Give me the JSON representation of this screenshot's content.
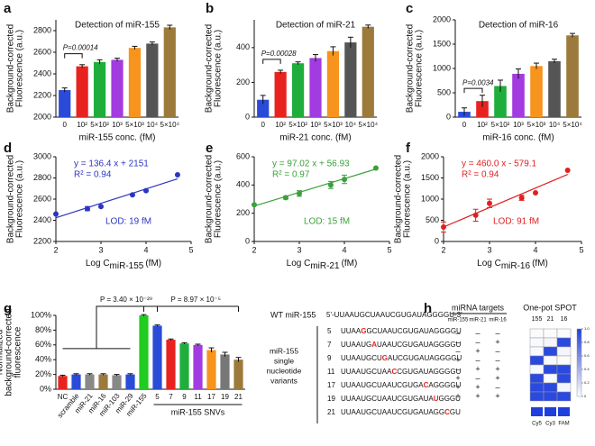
{
  "chart_data": [
    {
      "type": "bar",
      "panel": "a",
      "title": "Detection of miR-155",
      "categories": [
        "0",
        "10²",
        "5×10²",
        "10³",
        "5×10³",
        "10⁴",
        "5×10⁴"
      ],
      "values": [
        2250,
        2470,
        2510,
        2530,
        2640,
        2680,
        2830
      ],
      "errors": [
        20,
        15,
        20,
        15,
        15,
        15,
        20
      ],
      "colors": [
        "#2a4bd7",
        "#e8231f",
        "#1fae3c",
        "#a23be0",
        "#f7941d",
        "#555555",
        "#9c7a3c"
      ],
      "ylim": [
        2000,
        2900
      ],
      "yticks": [
        2000,
        2200,
        2400,
        2600,
        2800
      ],
      "y_label": [
        "Background-corrected",
        "Fluorescence (a.u.)"
      ],
      "x_label": "miR-155 conc. (fM)",
      "annotation": "P=0.00014"
    },
    {
      "type": "bar",
      "panel": "b",
      "title": "Detection of miR-21",
      "categories": [
        "0",
        "10²",
        "5×10²",
        "10³",
        "5×10³",
        "10⁴",
        "5×10⁴"
      ],
      "values": [
        100,
        260,
        310,
        340,
        380,
        430,
        520
      ],
      "errors": [
        25,
        10,
        8,
        20,
        25,
        30,
        10
      ],
      "colors": [
        "#2a4bd7",
        "#e8231f",
        "#1fae3c",
        "#a23be0",
        "#f7941d",
        "#555555",
        "#9c7a3c"
      ],
      "ylim": [
        0,
        560
      ],
      "yticks": [
        0,
        200,
        400
      ],
      "y_label": [
        "Background-corrected",
        "Fluorescence (a.u.)"
      ],
      "x_label": "miR-21 conc. (fM)",
      "annotation": "P=0.00028"
    },
    {
      "type": "bar",
      "panel": "c",
      "title": "Detection of miR-16",
      "categories": [
        "0",
        "10²",
        "5×10²",
        "10³",
        "5×10³",
        "10⁴",
        "5×10⁴"
      ],
      "values": [
        110,
        330,
        640,
        890,
        1050,
        1150,
        1680
      ],
      "errors": [
        80,
        120,
        120,
        100,
        60,
        40,
        40
      ],
      "colors": [
        "#2a4bd7",
        "#e8231f",
        "#1fae3c",
        "#a23be0",
        "#f7941d",
        "#555555",
        "#9c7a3c"
      ],
      "ylim": [
        0,
        2000
      ],
      "yticks": [
        0,
        500,
        1000,
        1500,
        2000
      ],
      "y_label": [
        "Background-corrected",
        "Fluorescence (a.u.)"
      ],
      "x_label": "miR-16 conc. (fM)",
      "annotation": "P=0.0034"
    },
    {
      "type": "scatter",
      "panel": "d",
      "color": "#2b35c0",
      "x": [
        2,
        2.699,
        3,
        3.699,
        4,
        4.699
      ],
      "values": [
        2460,
        2510,
        2530,
        2640,
        2680,
        2830
      ],
      "errors": [
        0,
        20,
        0,
        0,
        0,
        0
      ],
      "fit_line": {
        "x": [
          2,
          4.7
        ],
        "y": [
          2424,
          2792
        ]
      },
      "xlim": [
        2,
        5
      ],
      "xticks": [
        2,
        3,
        4,
        5
      ],
      "ylim": [
        2200,
        3000
      ],
      "yticks": [
        2200,
        2400,
        2600,
        2800,
        3000
      ],
      "equation": "y = 136.4 x + 2151",
      "r2": "R² = 0.94",
      "lod": "LOD: 19 fM",
      "y_label": [
        "Background-corrected",
        "Fluorescence (a.u.)"
      ],
      "x_label": [
        "Log C",
        "miR-155",
        "(fM)"
      ]
    },
    {
      "type": "scatter",
      "panel": "e",
      "color": "#3aa13a",
      "x": [
        2,
        2.699,
        3,
        3.699,
        4,
        4.699
      ],
      "values": [
        260,
        310,
        340,
        400,
        440,
        520
      ],
      "errors": [
        0,
        10,
        20,
        25,
        30,
        0
      ],
      "fit_line": {
        "x": [
          2,
          4.7
        ],
        "y": [
          251,
          513
        ]
      },
      "xlim": [
        2,
        5
      ],
      "xticks": [
        2,
        3,
        4,
        5
      ],
      "ylim": [
        0,
        600
      ],
      "yticks": [
        0,
        200,
        400,
        600
      ],
      "equation": "y = 97.02 x + 56.93",
      "r2": "R² = 0.97",
      "lod": "LOD: 15 fM",
      "y_label": [
        "Background-corrected",
        "Fluorescence (a.u.)"
      ],
      "x_label": [
        "Log C",
        "miR-21",
        "(fM)"
      ]
    },
    {
      "type": "scatter",
      "panel": "f",
      "color": "#e02020",
      "x": [
        2,
        2.699,
        3,
        3.699,
        4,
        4.699
      ],
      "values": [
        340,
        620,
        900,
        1030,
        1150,
        1680
      ],
      "errors": [
        120,
        140,
        100,
        60,
        0,
        0
      ],
      "fit_line": {
        "x": [
          2,
          4.7
        ],
        "y": [
          341,
          1583
        ]
      },
      "xlim": [
        2,
        5
      ],
      "xticks": [
        2,
        3,
        4,
        5
      ],
      "ylim": [
        0,
        2000
      ],
      "yticks": [
        0,
        500,
        1000,
        1500,
        2000
      ],
      "equation": "y = 460.0 x - 579.1",
      "r2": "R² = 0.94",
      "lod": "LOD: 91 fM",
      "y_label": [
        "Background-corrected",
        "Fluorescence (a.u.)"
      ],
      "x_label": [
        "Log C",
        "miR-16",
        "(fM)"
      ]
    },
    {
      "type": "bar",
      "panel": "g",
      "categories": [
        "NC",
        "scramble",
        "miR-21",
        "miR-16",
        "miR-103",
        "miR-29",
        "miR-155",
        "5",
        "7",
        "9",
        "11",
        "17",
        "19",
        "21"
      ],
      "values": [
        18,
        20,
        20,
        20,
        19,
        20,
        100,
        86,
        67,
        62,
        60,
        53,
        47,
        40
      ],
      "errors": [
        1,
        1,
        1,
        1,
        1,
        1,
        1,
        1,
        1,
        1,
        1,
        3,
        3,
        3
      ],
      "colors": [
        "#e8231f",
        "#2a4bd7",
        "#888888",
        "#9c7a3c",
        "#888888",
        "#2a4bd7",
        "#1fcc1f",
        "#2a4bd7",
        "#e8231f",
        "#1fae3c",
        "#a23be0",
        "#f7941d",
        "#777777",
        "#9c7a3c"
      ],
      "ylim": [
        0,
        100
      ],
      "yticks": [
        {
          "value": 0,
          "label": "0%"
        },
        {
          "value": 20,
          "label": "20%"
        },
        {
          "value": 40,
          "label": "40%"
        },
        {
          "value": 60,
          "label": "60%"
        },
        {
          "value": 80,
          "label": "80%"
        },
        {
          "value": 100,
          "label": "100%"
        }
      ],
      "y_label": [
        "Normalized",
        "background-corrected",
        "fluorescence"
      ],
      "annotations": [
        "P = 3.40 × 10⁻²⁹",
        "P = 8.97 × 10⁻⁵"
      ],
      "group_label": "miR-155 SNVs"
    },
    {
      "type": "heatmap",
      "title": "One-pot SPOT",
      "columns": [
        "155",
        "21",
        "16"
      ],
      "values": [
        [
          0.02,
          0.02,
          0.02
        ],
        [
          0.03,
          0.05,
          0.95
        ],
        [
          0.03,
          0.95,
          0.05
        ],
        [
          0.95,
          0.03,
          0.02
        ],
        [
          0.03,
          0.95,
          0.95
        ],
        [
          0.95,
          0.03,
          0.95
        ],
        [
          0.95,
          0.95,
          0.05
        ],
        [
          0.95,
          0.95,
          0.95
        ]
      ],
      "zlim": [
        0,
        1
      ],
      "zticks": [
        0,
        0.2,
        0.4,
        0.6,
        0.8,
        {
          "value": 1,
          "label": "1.0"
        }
      ],
      "dyes": [
        "Cy5",
        "Cy3",
        "FAM"
      ]
    }
  ],
  "sequences": {
    "wt_label": "WT miR-155",
    "wt": "5'-UUAAUGCUAAUCGUGAUAGGGGU-3'",
    "side_label": [
      "miR-155",
      "single",
      "nucleotide",
      "variants"
    ],
    "variants": [
      {
        "pos": "5",
        "seq": [
          "UUAA",
          "G",
          "GCUAAUCGUGAUAGGGGU"
        ]
      },
      {
        "pos": "7",
        "seq": [
          "UUAAUG",
          "A",
          "UAAUCGUGAUAGGGGU"
        ]
      },
      {
        "pos": "9",
        "seq": [
          "UUAAUGCU",
          "G",
          "AUCGUGAUAGGGGU"
        ]
      },
      {
        "pos": "11",
        "seq": [
          "UUAAUGCUAA",
          "C",
          "CGUGAUAGGGGU"
        ]
      },
      {
        "pos": "17",
        "seq": [
          "UUAAUGCUAAUCGUGA",
          "C",
          "AGGGGU"
        ]
      },
      {
        "pos": "19",
        "seq": [
          "UUAAUGCUAAUCGUGAUA",
          "U",
          "GGGU"
        ]
      },
      {
        "pos": "21",
        "seq": [
          "UUAAUGCUAAUCGUGAUAGG",
          "C",
          "GU"
        ]
      }
    ]
  },
  "targets": {
    "panel": "h",
    "header": "miRNA targets",
    "columns": [
      "miR-155",
      "miR-21",
      "miR-16"
    ],
    "rows": [
      [
        "–",
        "–",
        "–"
      ],
      [
        "–",
        "–",
        "+"
      ],
      [
        "–",
        "+",
        "–"
      ],
      [
        "+",
        "–",
        "–"
      ],
      [
        "–",
        "+",
        "+"
      ],
      [
        "+",
        "–",
        "+"
      ],
      [
        "+",
        "+",
        "–"
      ],
      [
        "+",
        "+",
        "+"
      ]
    ]
  }
}
